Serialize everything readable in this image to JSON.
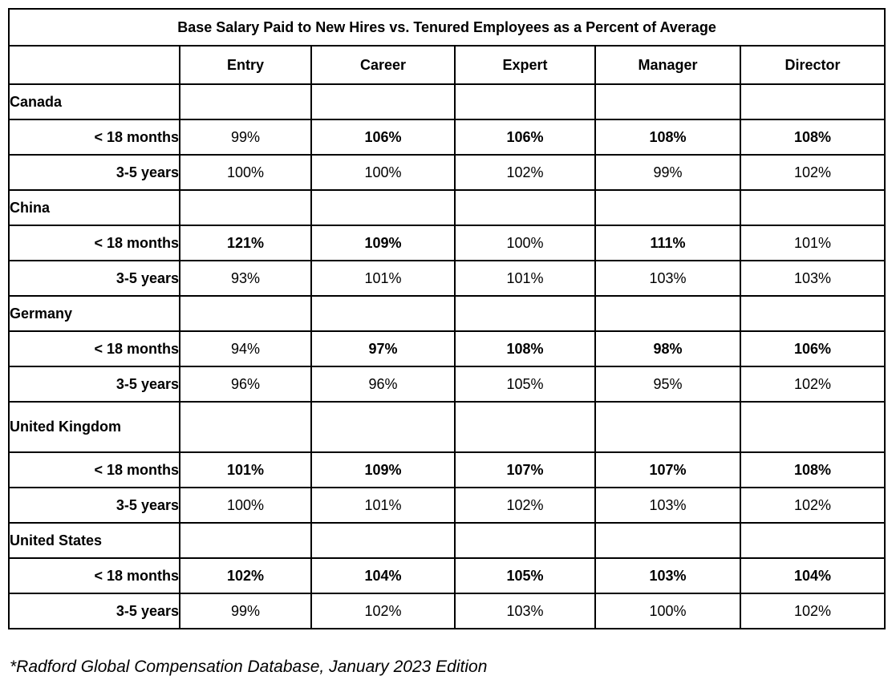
{
  "title": "Base Salary Paid to New Hires vs. Tenured Employees as a Percent of Average",
  "columns": [
    "Entry",
    "Career",
    "Expert",
    "Manager",
    "Director"
  ],
  "sections": [
    {
      "country": "Canada",
      "rows": [
        {
          "label": "< 18 months",
          "values": [
            "99%",
            "106%",
            "106%",
            "108%",
            "108%"
          ],
          "bold": [
            false,
            true,
            true,
            true,
            true
          ]
        },
        {
          "label": "3-5 years",
          "values": [
            "100%",
            "100%",
            "102%",
            "99%",
            "102%"
          ],
          "bold": [
            false,
            false,
            false,
            false,
            false
          ]
        }
      ]
    },
    {
      "country": "China",
      "rows": [
        {
          "label": "< 18 months",
          "values": [
            "121%",
            "109%",
            "100%",
            "111%",
            "101%"
          ],
          "bold": [
            true,
            true,
            false,
            true,
            false
          ]
        },
        {
          "label": "3-5 years",
          "values": [
            "93%",
            "101%",
            "101%",
            "103%",
            "103%"
          ],
          "bold": [
            false,
            false,
            false,
            false,
            false
          ]
        }
      ]
    },
    {
      "country": "Germany",
      "rows": [
        {
          "label": "< 18 months",
          "values": [
            "94%",
            "97%",
            "108%",
            "98%",
            "106%"
          ],
          "bold": [
            false,
            true,
            true,
            true,
            true
          ]
        },
        {
          "label": "3-5 years",
          "values": [
            "96%",
            "96%",
            "105%",
            "95%",
            "102%"
          ],
          "bold": [
            false,
            false,
            false,
            false,
            false
          ]
        }
      ]
    },
    {
      "country": "United Kingdom",
      "rows": [
        {
          "label": "< 18 months",
          "values": [
            "101%",
            "109%",
            "107%",
            "107%",
            "108%"
          ],
          "bold": [
            true,
            true,
            true,
            true,
            true
          ]
        },
        {
          "label": "3-5 years",
          "values": [
            "100%",
            "101%",
            "102%",
            "103%",
            "102%"
          ],
          "bold": [
            false,
            false,
            false,
            false,
            false
          ]
        }
      ]
    },
    {
      "country": "United States",
      "rows": [
        {
          "label": "< 18 months",
          "values": [
            "102%",
            "104%",
            "105%",
            "103%",
            "104%"
          ],
          "bold": [
            true,
            true,
            true,
            true,
            true
          ]
        },
        {
          "label": "3-5 years",
          "values": [
            "99%",
            "102%",
            "103%",
            "100%",
            "102%"
          ],
          "bold": [
            false,
            false,
            false,
            false,
            false
          ]
        }
      ]
    }
  ],
  "footnote": "*Radford Global Compensation Database, January 2023 Edition",
  "colors": {
    "border": "#000000",
    "background": "#ffffff",
    "text": "#000000"
  }
}
